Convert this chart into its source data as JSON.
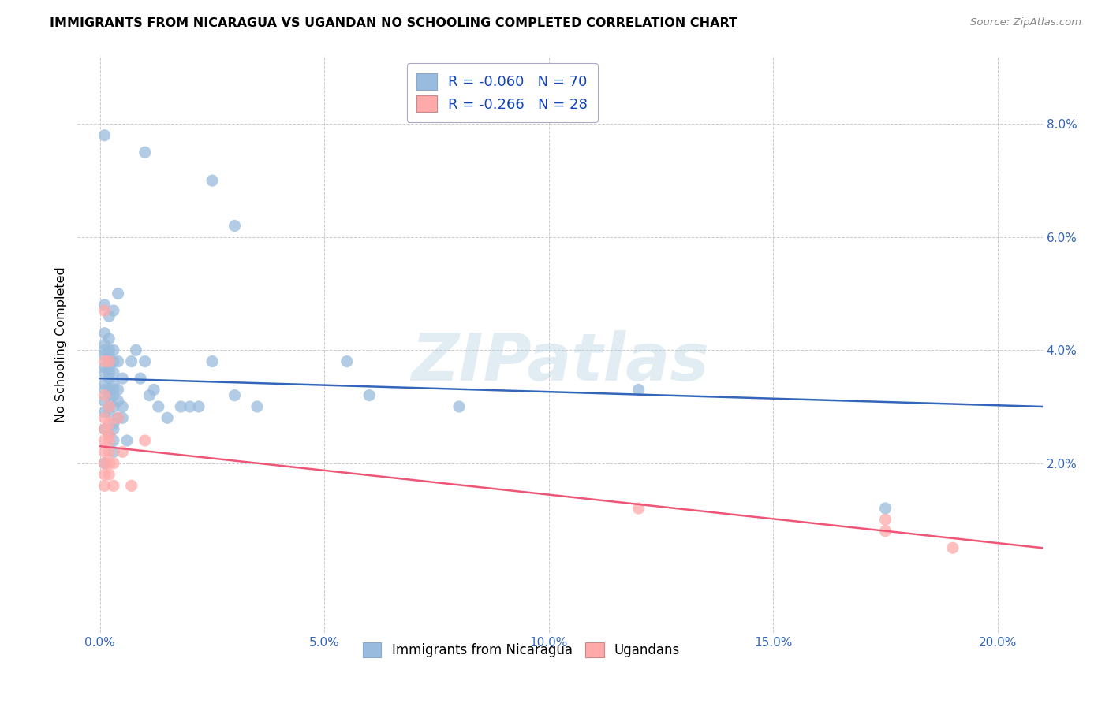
{
  "title": "IMMIGRANTS FROM NICARAGUA VS UGANDAN NO SCHOOLING COMPLETED CORRELATION CHART",
  "source": "Source: ZipAtlas.com",
  "xlabel_ticks": [
    "0.0%",
    "5.0%",
    "10.0%",
    "15.0%",
    "20.0%"
  ],
  "xlabel_vals": [
    0.0,
    0.05,
    0.1,
    0.15,
    0.2
  ],
  "ylabel": "No Schooling Completed",
  "ylabel_ticks": [
    "2.0%",
    "4.0%",
    "6.0%",
    "8.0%"
  ],
  "ylabel_vals": [
    0.02,
    0.04,
    0.06,
    0.08
  ],
  "xlim": [
    -0.005,
    0.21
  ],
  "ylim": [
    -0.01,
    0.092
  ],
  "legend1_label": "Immigrants from Nicaragua",
  "legend2_label": "Ugandans",
  "R1": "-0.060",
  "N1": "70",
  "R2": "-0.266",
  "N2": "28",
  "blue_color": "#99BBDD",
  "pink_color": "#FFAAAA",
  "blue_line_color": "#3366BB",
  "pink_line_color": "#EE5577",
  "blue_scatter": [
    [
      0.001,
      0.078
    ],
    [
      0.01,
      0.075
    ],
    [
      0.025,
      0.07
    ],
    [
      0.03,
      0.062
    ],
    [
      0.001,
      0.048
    ],
    [
      0.003,
      0.047
    ],
    [
      0.002,
      0.046
    ],
    [
      0.004,
      0.05
    ],
    [
      0.001,
      0.043
    ],
    [
      0.002,
      0.042
    ],
    [
      0.001,
      0.041
    ],
    [
      0.001,
      0.04
    ],
    [
      0.002,
      0.04
    ],
    [
      0.003,
      0.04
    ],
    [
      0.001,
      0.039
    ],
    [
      0.002,
      0.039
    ],
    [
      0.002,
      0.038
    ],
    [
      0.003,
      0.038
    ],
    [
      0.004,
      0.038
    ],
    [
      0.001,
      0.037
    ],
    [
      0.002,
      0.037
    ],
    [
      0.001,
      0.036
    ],
    [
      0.002,
      0.036
    ],
    [
      0.003,
      0.036
    ],
    [
      0.002,
      0.035
    ],
    [
      0.005,
      0.035
    ],
    [
      0.001,
      0.034
    ],
    [
      0.003,
      0.034
    ],
    [
      0.001,
      0.033
    ],
    [
      0.002,
      0.033
    ],
    [
      0.003,
      0.033
    ],
    [
      0.004,
      0.033
    ],
    [
      0.002,
      0.032
    ],
    [
      0.003,
      0.032
    ],
    [
      0.001,
      0.031
    ],
    [
      0.004,
      0.031
    ],
    [
      0.002,
      0.03
    ],
    [
      0.003,
      0.03
    ],
    [
      0.005,
      0.03
    ],
    [
      0.001,
      0.029
    ],
    [
      0.002,
      0.029
    ],
    [
      0.004,
      0.028
    ],
    [
      0.005,
      0.028
    ],
    [
      0.003,
      0.027
    ],
    [
      0.001,
      0.026
    ],
    [
      0.003,
      0.026
    ],
    [
      0.002,
      0.025
    ],
    [
      0.003,
      0.024
    ],
    [
      0.006,
      0.024
    ],
    [
      0.003,
      0.022
    ],
    [
      0.001,
      0.02
    ],
    [
      0.007,
      0.038
    ],
    [
      0.008,
      0.04
    ],
    [
      0.009,
      0.035
    ],
    [
      0.01,
      0.038
    ],
    [
      0.011,
      0.032
    ],
    [
      0.012,
      0.033
    ],
    [
      0.013,
      0.03
    ],
    [
      0.015,
      0.028
    ],
    [
      0.018,
      0.03
    ],
    [
      0.02,
      0.03
    ],
    [
      0.022,
      0.03
    ],
    [
      0.025,
      0.038
    ],
    [
      0.03,
      0.032
    ],
    [
      0.035,
      0.03
    ],
    [
      0.055,
      0.038
    ],
    [
      0.06,
      0.032
    ],
    [
      0.08,
      0.03
    ],
    [
      0.12,
      0.033
    ],
    [
      0.175,
      0.012
    ]
  ],
  "pink_scatter": [
    [
      0.001,
      0.047
    ],
    [
      0.001,
      0.038
    ],
    [
      0.002,
      0.038
    ],
    [
      0.001,
      0.032
    ],
    [
      0.002,
      0.03
    ],
    [
      0.001,
      0.028
    ],
    [
      0.002,
      0.027
    ],
    [
      0.001,
      0.026
    ],
    [
      0.002,
      0.025
    ],
    [
      0.001,
      0.024
    ],
    [
      0.002,
      0.024
    ],
    [
      0.001,
      0.022
    ],
    [
      0.002,
      0.022
    ],
    [
      0.001,
      0.02
    ],
    [
      0.002,
      0.02
    ],
    [
      0.001,
      0.018
    ],
    [
      0.002,
      0.018
    ],
    [
      0.001,
      0.016
    ],
    [
      0.003,
      0.02
    ],
    [
      0.003,
      0.016
    ],
    [
      0.004,
      0.028
    ],
    [
      0.005,
      0.022
    ],
    [
      0.007,
      0.016
    ],
    [
      0.01,
      0.024
    ],
    [
      0.12,
      0.012
    ],
    [
      0.175,
      0.01
    ],
    [
      0.175,
      0.008
    ],
    [
      0.19,
      0.005
    ]
  ],
  "watermark_text": "ZIPatlas",
  "watermark_color": "#AACCDD",
  "watermark_alpha": 0.35
}
